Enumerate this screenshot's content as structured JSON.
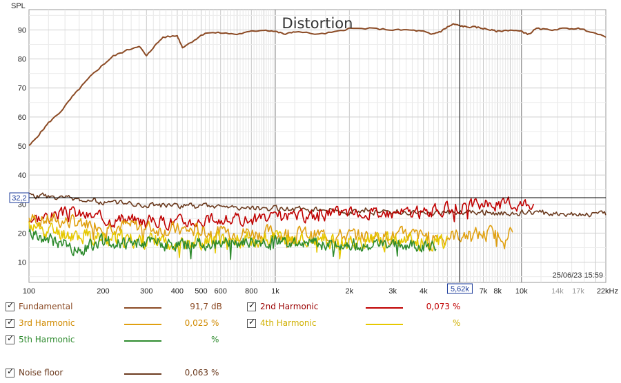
{
  "chart_data": {
    "type": "line",
    "title": "Distortion",
    "ylabel": "SPL",
    "xscale": "log",
    "xlim": [
      100,
      22000
    ],
    "ylim": [
      3,
      97
    ],
    "x_tick_labels": [
      {
        "v": 100,
        "t": "100"
      },
      {
        "v": 200,
        "t": "200"
      },
      {
        "v": 300,
        "t": "300"
      },
      {
        "v": 400,
        "t": "400"
      },
      {
        "v": 500,
        "t": "500"
      },
      {
        "v": 600,
        "t": "600"
      },
      {
        "v": 800,
        "t": "800"
      },
      {
        "v": 1000,
        "t": "1k"
      },
      {
        "v": 2000,
        "t": "2k"
      },
      {
        "v": 3000,
        "t": "3k"
      },
      {
        "v": 4000,
        "t": "4k"
      },
      {
        "v": 7000,
        "t": "7k"
      },
      {
        "v": 8000,
        "t": "8k"
      },
      {
        "v": 10000,
        "t": "10k"
      },
      {
        "v": 14000,
        "t": "14k",
        "dim": true
      },
      {
        "v": 17000,
        "t": "17k",
        "dim": true
      },
      {
        "v": 22000,
        "t": "22kHz"
      }
    ],
    "y_ticks": [
      10,
      20,
      30,
      40,
      50,
      60,
      70,
      80,
      90
    ],
    "cursor": {
      "x_label": "5,62k",
      "x": 5620,
      "y_label": "32,2",
      "y": 32.2
    },
    "timestamp": "25/06/23 15:59",
    "series": [
      {
        "name": "Fundamental",
        "color": "#8b4a24",
        "style": "smooth",
        "points": [
          [
            100,
            50
          ],
          [
            110,
            54
          ],
          [
            120,
            58
          ],
          [
            135,
            62
          ],
          [
            150,
            67
          ],
          [
            165,
            71
          ],
          [
            180,
            74.5
          ],
          [
            200,
            78
          ],
          [
            220,
            81
          ],
          [
            250,
            83
          ],
          [
            280,
            84.5
          ],
          [
            300,
            81
          ],
          [
            320,
            84
          ],
          [
            350,
            87.5
          ],
          [
            400,
            88
          ],
          [
            420,
            84
          ],
          [
            460,
            86
          ],
          [
            520,
            89
          ],
          [
            600,
            89
          ],
          [
            700,
            88.5
          ],
          [
            800,
            89.5
          ],
          [
            900,
            90
          ],
          [
            1000,
            89.5
          ],
          [
            1100,
            88.5
          ],
          [
            1200,
            89.5
          ],
          [
            1500,
            88.5
          ],
          [
            1800,
            89.5
          ],
          [
            2000,
            90.5
          ],
          [
            2500,
            90.5
          ],
          [
            3000,
            90
          ],
          [
            3500,
            90
          ],
          [
            4000,
            89.5
          ],
          [
            4300,
            88.5
          ],
          [
            4700,
            89.5
          ],
          [
            5000,
            91
          ],
          [
            5300,
            92
          ],
          [
            5600,
            91.5
          ],
          [
            6000,
            91
          ],
          [
            6500,
            91
          ],
          [
            7000,
            90.5
          ],
          [
            7500,
            90
          ],
          [
            8000,
            89.5
          ],
          [
            9000,
            90
          ],
          [
            10000,
            89.5
          ],
          [
            10700,
            88.5
          ],
          [
            11500,
            90.5
          ],
          [
            13000,
            90
          ],
          [
            15000,
            90.5
          ],
          [
            17000,
            90.5
          ],
          [
            19000,
            89.5
          ],
          [
            22000,
            87.5
          ]
        ]
      },
      {
        "name": "2nd Harmonic",
        "color": "#c00000",
        "style": "noisy",
        "value": "0,073 %",
        "start": 100,
        "end": 11200,
        "base": [
          [
            100,
            25
          ],
          [
            150,
            27
          ],
          [
            200,
            25
          ],
          [
            400,
            24
          ],
          [
            1000,
            25
          ],
          [
            2000,
            27
          ],
          [
            4000,
            27
          ],
          [
            6000,
            29.5
          ],
          [
            10000,
            30
          ],
          [
            11200,
            31
          ]
        ],
        "amp": 3.5,
        "seed": 3
      },
      {
        "name": "3rd Harmonic",
        "color": "#e0a010",
        "style": "noisy",
        "value": "0,025 %",
        "start": 100,
        "end": 9200,
        "base": [
          [
            100,
            25
          ],
          [
            200,
            23
          ],
          [
            400,
            21
          ],
          [
            1000,
            20
          ],
          [
            2000,
            19
          ],
          [
            5000,
            19
          ],
          [
            9200,
            20
          ]
        ],
        "amp": 4,
        "seed": 7
      },
      {
        "name": "4th Harmonic",
        "color": "#e6c800",
        "style": "noisy",
        "value": "",
        "start": 100,
        "end": 5000,
        "base": [
          [
            100,
            22
          ],
          [
            200,
            18
          ],
          [
            400,
            17
          ],
          [
            1000,
            18
          ],
          [
            2000,
            17
          ],
          [
            5000,
            17
          ]
        ],
        "amp": 4.5,
        "seed": 11
      },
      {
        "name": "5th Harmonic",
        "color": "#2e8b2e",
        "style": "noisy",
        "value": "",
        "start": 100,
        "end": 4500,
        "base": [
          [
            100,
            20
          ],
          [
            160,
            14
          ],
          [
            200,
            17
          ],
          [
            400,
            16
          ],
          [
            1000,
            17
          ],
          [
            2000,
            16
          ],
          [
            4500,
            15.5
          ]
        ],
        "amp": 3.5,
        "seed": 19
      },
      {
        "name": "Noise floor",
        "color": "#6b3a1e",
        "style": "noisy",
        "value": "0,063 %",
        "start": 100,
        "end": 22000,
        "base": [
          [
            100,
            33
          ],
          [
            150,
            32
          ],
          [
            200,
            30.5
          ],
          [
            400,
            29.5
          ],
          [
            1000,
            28.5
          ],
          [
            2000,
            27.5
          ],
          [
            5000,
            27
          ],
          [
            10000,
            27
          ],
          [
            22000,
            26.5
          ]
        ],
        "amp": 1.6,
        "seed": 23
      }
    ]
  },
  "legend": [
    {
      "name": "Fundamental",
      "value": "91,7",
      "unit": "dB",
      "color": "#8b4a24",
      "label_color": "#8b4a24",
      "value_color": "#8b4a24"
    },
    {
      "name": "2nd Harmonic",
      "value": "0,073",
      "unit": "%",
      "color": "#c00000",
      "label_color": "#9a0000",
      "value_color": "#c00000"
    },
    {
      "name": "3rd Harmonic",
      "value": "0,025",
      "unit": "%",
      "color": "#e0a010",
      "label_color": "#d08a00",
      "value_color": "#d08a00"
    },
    {
      "name": "4th Harmonic",
      "value": "",
      "unit": "%",
      "color": "#e6c800",
      "label_color": "#d0b000",
      "value_color": "#d0b000"
    },
    {
      "name": "5th Harmonic",
      "value": "",
      "unit": "%",
      "color": "#2e8b2e",
      "label_color": "#2e8b2e",
      "value_color": "#2e8b2e"
    },
    {
      "name": "Noise floor",
      "value": "0,063",
      "unit": "%",
      "color": "#6b3a1e",
      "label_color": "#6b3a1e",
      "value_color": "#6b3a1e"
    }
  ]
}
